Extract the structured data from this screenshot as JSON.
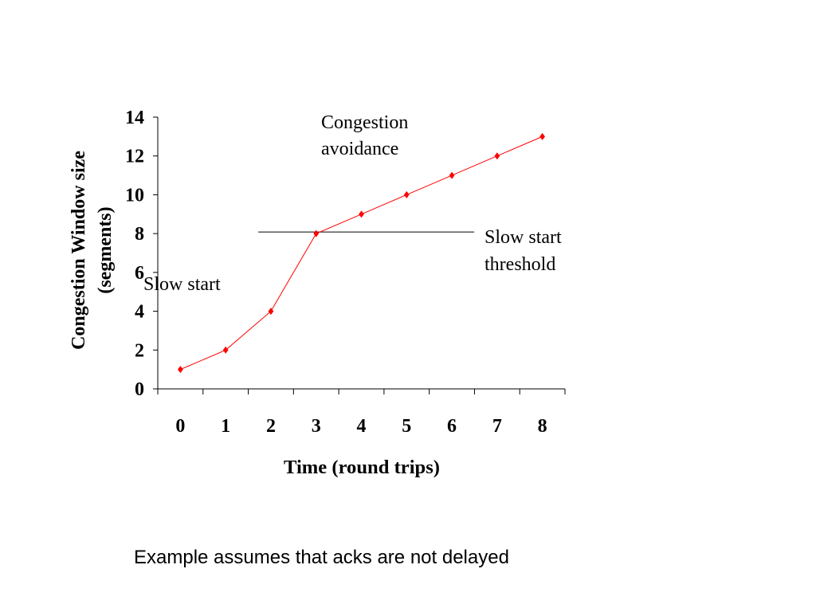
{
  "chart_data": {
    "type": "line",
    "x": [
      0,
      1,
      2,
      3,
      4,
      5,
      6,
      7,
      8
    ],
    "series": [
      {
        "values": [
          1,
          2,
          4,
          8,
          9,
          10,
          11,
          12,
          13
        ]
      }
    ],
    "xlabel": "Time (round trips)",
    "ylabel": "Congestion Window size (segments)",
    "ylabel_lines": [
      "Congestion Window size",
      "(segments)"
    ],
    "ylim": [
      0,
      14
    ],
    "yticks": [
      0,
      2,
      4,
      6,
      8,
      10,
      12,
      14
    ],
    "xticks": [
      "0",
      "1",
      "2",
      "3",
      "4",
      "5",
      "6",
      "7",
      "8"
    ],
    "grid": false,
    "threshold": {
      "value": 8,
      "label_lines": [
        "Slow start",
        "threshold"
      ]
    },
    "annotations": {
      "slow_start": "Slow start",
      "congestion_avoidance_lines": [
        "Congestion",
        "avoidance"
      ]
    },
    "colors": {
      "line": "#ff0000",
      "marker": "#ff0000",
      "axis": "#000000",
      "threshold": "#000000"
    }
  },
  "caption": "Example assumes that acks are not delayed"
}
